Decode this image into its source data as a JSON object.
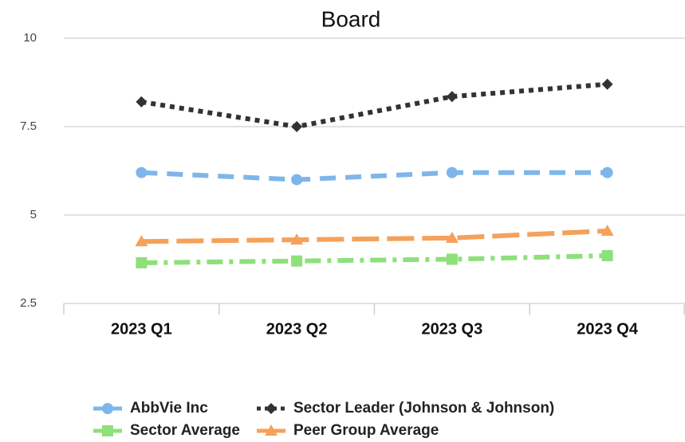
{
  "chart_data": {
    "type": "line",
    "title": "Board",
    "categories": [
      "2023 Q1",
      "2023 Q2",
      "2023 Q3",
      "2023 Q4"
    ],
    "series": [
      {
        "name": "AbbVie Inc",
        "color": "#7eb6ea",
        "marker": "circle",
        "line_style": "dashed",
        "values": [
          6.2,
          6.0,
          6.2,
          6.2
        ]
      },
      {
        "name": "Sector Leader (Johnson & Johnson)",
        "color": "#333333",
        "marker": "diamond",
        "line_style": "dotted",
        "values": [
          8.2,
          7.5,
          8.35,
          8.7
        ]
      },
      {
        "name": "Sector Average",
        "color": "#8ee07a",
        "marker": "square",
        "line_style": "dashdot",
        "values": [
          3.65,
          3.7,
          3.75,
          3.85
        ]
      },
      {
        "name": "Peer Group Average",
        "color": "#f5a15a",
        "marker": "triangle",
        "line_style": "longdash",
        "values": [
          4.25,
          4.3,
          4.35,
          4.55
        ]
      }
    ],
    "ylim": [
      2.5,
      10
    ],
    "yticks": [
      2.5,
      5,
      7.5,
      10
    ],
    "grid": true,
    "legend": "bottom"
  }
}
